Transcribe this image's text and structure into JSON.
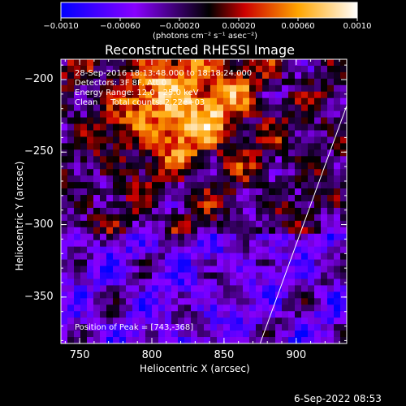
{
  "chart_data": {
    "type": "heatmap",
    "title": "Reconstructed RHESSI Image",
    "xlabel": "Heliocentric X (arcsec)",
    "ylabel": "Heliocentric Y (arcsec)",
    "xlim": [
      737,
      935
    ],
    "ylim": [
      -382,
      -186
    ],
    "x_ticks": [
      750,
      800,
      850,
      900
    ],
    "x_tick_labels": [
      "750",
      "800",
      "850",
      "900"
    ],
    "y_ticks": [
      -200,
      -250,
      -300,
      -350
    ],
    "y_tick_labels": [
      "−200",
      "−250",
      "−300",
      "−350"
    ],
    "colorbar": {
      "range": [
        -0.001,
        0.001
      ],
      "ticks": [
        -0.001,
        -0.0006,
        -0.0002,
        0.0002,
        0.0006,
        0.001
      ],
      "tick_labels": [
        "−0.0010",
        "−0.00060",
        "−0.00020",
        "0.00020",
        "0.00060",
        "0.0010"
      ],
      "unit_label": "(photons cm⁻² s⁻¹ asec⁻²)",
      "colors": [
        "#0000ff",
        "#8800ff",
        "#000000",
        "#ff0000",
        "#ffa500",
        "#ffffff"
      ]
    },
    "annotations": [
      "28-Sep-2016 18:13:48.000 to 18:18:24.000",
      "Detectors: 3F 8F, Att 0",
      "Energy Range: 12.0 - 25.0 keV",
      "Clean     Total counts: 2.22e+03"
    ],
    "peak_label": "Position of Peak = [743,-368]",
    "limb_line": [
      [
        875,
        -382
      ],
      [
        935,
        -218
      ]
    ]
  },
  "footer": {
    "timestamp": "6-Sep-2022 08:53"
  }
}
